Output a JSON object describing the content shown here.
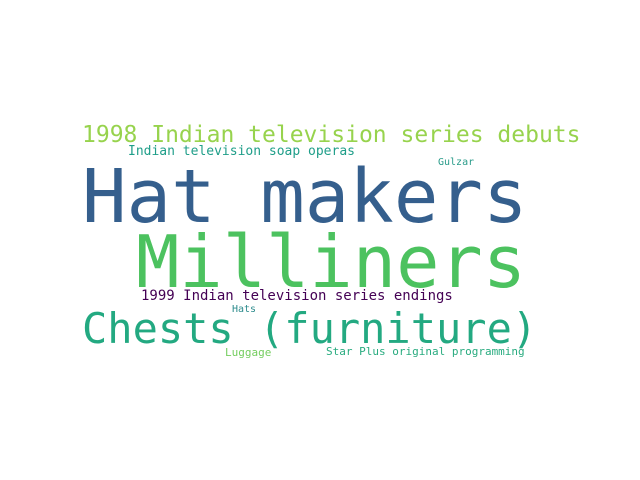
{
  "word_cloud": {
    "background": "#ffffff",
    "words": {
      "hat_makers": {
        "text": "Hat makers",
        "color": "#355f8d"
      },
      "milliners": {
        "text": "Milliners",
        "color": "#4cc25f"
      },
      "chests": {
        "text": "Chests (furniture)",
        "color": "#23a981"
      },
      "debuts_1998": {
        "text": "1998 Indian television series debuts",
        "color": "#97d34d"
      },
      "soap_operas": {
        "text": "Indian television soap operas",
        "color": "#1f9e89"
      },
      "endings_1999": {
        "text": "1999 Indian television series endings",
        "color": "#440154"
      },
      "gulzar": {
        "text": "Gulzar",
        "color": "#2a9c8a"
      },
      "hats": {
        "text": "Hats",
        "color": "#2e8c8d"
      },
      "luggage": {
        "text": "Luggage",
        "color": "#74cd5f"
      },
      "star_plus": {
        "text": "Star Plus original programming",
        "color": "#28ab7f"
      }
    }
  }
}
